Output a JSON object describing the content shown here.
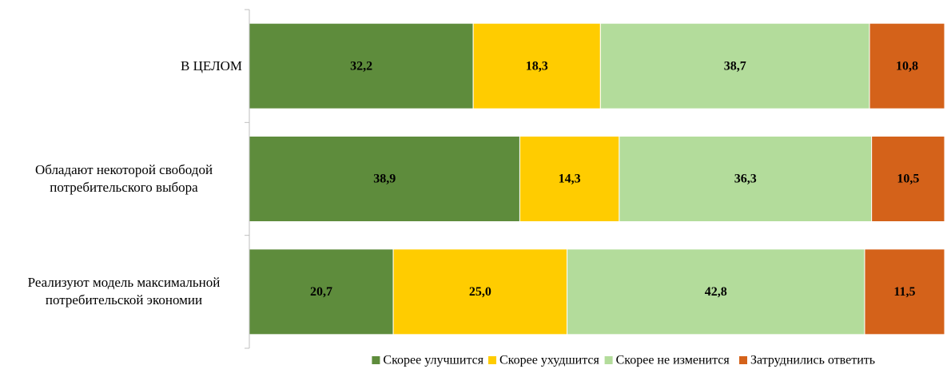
{
  "chart_data": {
    "type": "stacked_bar_horizontal",
    "categories": [
      "В ЦЕЛОМ",
      "Обладают некоторой свободой потребительского выбора",
      "Реализуют модель максимальной потребительской экономии"
    ],
    "series": [
      {
        "name": "Скорее улучшится",
        "color": "#5e8c3c",
        "values": [
          32.2,
          38.9,
          20.7
        ],
        "value_labels": [
          "32,2",
          "38,9",
          "20,7"
        ]
      },
      {
        "name": "Скорее ухудшится",
        "color": "#ffcc00",
        "values": [
          18.3,
          14.3,
          25.0
        ],
        "value_labels": [
          "18,3",
          "14,3",
          "25,0"
        ]
      },
      {
        "name": "Скорее не изменится",
        "color": "#b3dc9b",
        "values": [
          38.7,
          36.3,
          42.8
        ],
        "value_labels": [
          "38,7",
          "36,3",
          "42,8"
        ]
      },
      {
        "name": "Затруднились ответить",
        "color": "#d4621a",
        "values": [
          10.8,
          10.5,
          11.5
        ],
        "value_labels": [
          "10,8",
          "10,5",
          "11,5"
        ]
      }
    ],
    "xlim": [
      0,
      100
    ],
    "legend": "bottom"
  }
}
